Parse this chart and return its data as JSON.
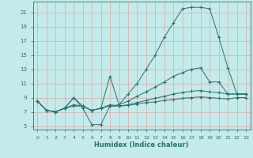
{
  "xlabel": "Humidex (Indice chaleur)",
  "xlim": [
    -0.5,
    23.5
  ],
  "ylim": [
    4.5,
    22.5
  ],
  "xticks": [
    0,
    1,
    2,
    3,
    4,
    5,
    6,
    7,
    8,
    9,
    10,
    11,
    12,
    13,
    14,
    15,
    16,
    17,
    18,
    19,
    20,
    21,
    22,
    23
  ],
  "yticks": [
    5,
    7,
    9,
    11,
    13,
    15,
    17,
    19,
    21
  ],
  "bg_color": "#c5eaea",
  "grid_color": "#dba8a8",
  "line_color": "#2a7070",
  "lines": [
    {
      "x": [
        0,
        1,
        2,
        3,
        4,
        5,
        6,
        7,
        8,
        9,
        10,
        11,
        12,
        13,
        14,
        15,
        16,
        17,
        18,
        19,
        20,
        21,
        22,
        23
      ],
      "y": [
        8.5,
        7.2,
        7.0,
        7.5,
        9.0,
        7.5,
        5.2,
        5.2,
        7.8,
        8.0,
        9.5,
        11.0,
        13.0,
        15.0,
        17.5,
        19.5,
        21.5,
        21.7,
        21.7,
        21.5,
        17.5,
        13.2,
        9.5,
        9.5
      ]
    },
    {
      "x": [
        0,
        1,
        2,
        3,
        4,
        5,
        6,
        7,
        8,
        9,
        10,
        11,
        12,
        13,
        14,
        15,
        16,
        17,
        18,
        19,
        20,
        21,
        22,
        23
      ],
      "y": [
        8.5,
        7.2,
        7.0,
        7.5,
        9.0,
        7.8,
        7.2,
        7.5,
        12.0,
        8.0,
        8.5,
        9.2,
        9.8,
        10.5,
        11.2,
        12.0,
        12.5,
        13.0,
        13.2,
        11.2,
        11.2,
        9.5,
        9.5,
        9.5
      ]
    },
    {
      "x": [
        0,
        1,
        2,
        3,
        4,
        5,
        6,
        7,
        8,
        9,
        10,
        11,
        12,
        13,
        14,
        15,
        16,
        17,
        18,
        19,
        20,
        21,
        22,
        23
      ],
      "y": [
        8.5,
        7.2,
        7.0,
        7.5,
        8.0,
        7.8,
        7.2,
        7.5,
        8.0,
        7.8,
        8.0,
        8.3,
        8.6,
        8.9,
        9.2,
        9.5,
        9.7,
        9.9,
        10.0,
        9.8,
        9.7,
        9.5,
        9.5,
        9.5
      ]
    },
    {
      "x": [
        0,
        1,
        2,
        3,
        4,
        5,
        6,
        7,
        8,
        9,
        10,
        11,
        12,
        13,
        14,
        15,
        16,
        17,
        18,
        19,
        20,
        21,
        22,
        23
      ],
      "y": [
        8.5,
        7.2,
        7.0,
        7.5,
        7.8,
        7.8,
        7.2,
        7.5,
        7.8,
        7.8,
        7.9,
        8.1,
        8.3,
        8.4,
        8.6,
        8.7,
        8.9,
        9.0,
        9.1,
        9.0,
        8.9,
        8.8,
        9.0,
        9.0
      ]
    }
  ]
}
